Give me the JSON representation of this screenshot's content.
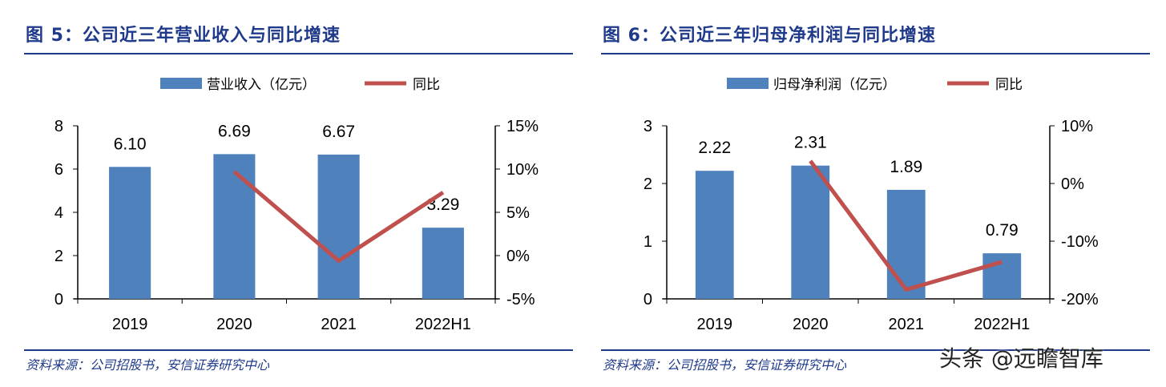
{
  "charts": [
    {
      "title": "图 5：公司近三年营业收入与同比增速",
      "source": "资料来源：公司招股书，安信证券研究中心"
    },
    {
      "title": "图 6：公司近三年归母净利润与同比增速",
      "source": "资料来源：公司招股书，安信证券研究中心"
    }
  ],
  "watermark": "头条 @远瞻智库",
  "colors": {
    "bar": "#4f81bd",
    "line": "#c0504d",
    "title": "#1f3a8a"
  },
  "chart_data": [
    {
      "type": "bar+line",
      "categories": [
        "2019",
        "2020",
        "2021",
        "2022H1"
      ],
      "series": [
        {
          "name": "营业收入（亿元）",
          "type": "bar",
          "axis": "left",
          "values": [
            6.1,
            6.69,
            6.67,
            3.29
          ],
          "labels": [
            "6.10",
            "6.69",
            "6.67",
            "3.29"
          ]
        },
        {
          "name": "同比",
          "type": "line",
          "axis": "right",
          "values": [
            null,
            9.7,
            -0.6,
            7.3
          ]
        }
      ],
      "ylim_left": [
        0,
        8
      ],
      "yticks_left": [
        "0",
        "2",
        "4",
        "6",
        "8"
      ],
      "ylim_right": [
        -5,
        15
      ],
      "yticks_right": [
        "-5%",
        "0%",
        "5%",
        "10%",
        "15%"
      ],
      "grid": false,
      "legend": "top"
    },
    {
      "type": "bar+line",
      "categories": [
        "2019",
        "2020",
        "2021",
        "2022H1"
      ],
      "series": [
        {
          "name": "归母净利润（亿元）",
          "type": "bar",
          "axis": "left",
          "values": [
            2.22,
            2.31,
            1.89,
            0.79
          ],
          "labels": [
            "2.22",
            "2.31",
            "1.89",
            "0.79"
          ]
        },
        {
          "name": "同比",
          "type": "line",
          "axis": "right",
          "values": [
            null,
            3.9,
            -18.4,
            -13.6
          ]
        }
      ],
      "ylim_left": [
        0,
        3
      ],
      "yticks_left": [
        "0",
        "1",
        "2",
        "3"
      ],
      "ylim_right": [
        -20,
        10
      ],
      "yticks_right": [
        "-20%",
        "-10%",
        "0%",
        "10%"
      ],
      "grid": false,
      "legend": "top"
    }
  ]
}
